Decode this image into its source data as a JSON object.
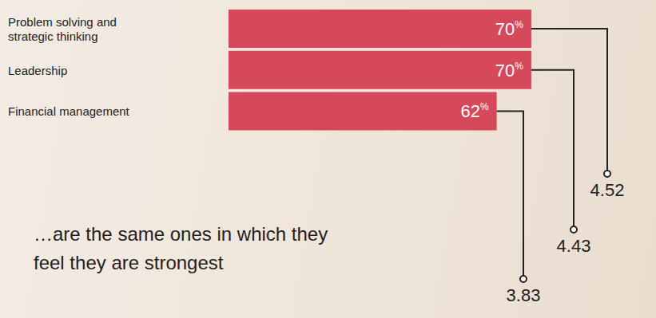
{
  "chart_data": {
    "type": "bar",
    "orientation": "horizontal",
    "categories": [
      "Problem solving and strategic thinking",
      "Leadership",
      "Financial management"
    ],
    "values": [
      70,
      70,
      62
    ],
    "value_labels": [
      "70%",
      "70%",
      "62%"
    ],
    "data_labels": true,
    "scores": [
      4.52,
      4.43,
      3.83
    ],
    "annotation": "…are the same ones in which they feel they are strongest",
    "color": "#d5495b",
    "xlim": [
      0,
      75
    ],
    "tick_labels": "y",
    "grid": false
  }
}
